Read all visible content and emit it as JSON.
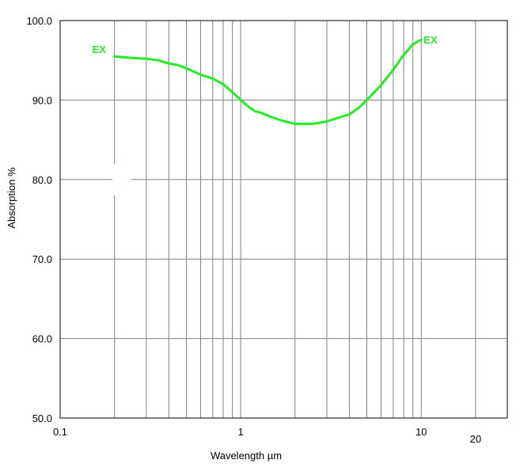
{
  "chart_data": {
    "type": "line",
    "x_scale": "log",
    "xlabel": "Wavelength  µm",
    "ylabel": "Absorption  %",
    "xlim": [
      0.1,
      30
    ],
    "ylim": [
      50,
      100
    ],
    "x_ticks": [
      {
        "value": 0.1,
        "label": "0.1"
      },
      {
        "value": 1,
        "label": "1"
      },
      {
        "value": 10,
        "label": "10"
      },
      {
        "value": 20,
        "label": "20"
      }
    ],
    "y_ticks": [
      {
        "value": 100,
        "label": "100.0"
      },
      {
        "value": 90,
        "label": "90.0"
      },
      {
        "value": 80,
        "label": "80.0"
      },
      {
        "value": 70,
        "label": "70.0"
      },
      {
        "value": 60,
        "label": "60.0"
      },
      {
        "value": 50,
        "label": "50.0"
      }
    ],
    "vertical_grid": [
      0.2,
      0.3,
      0.4,
      0.5,
      0.6,
      0.7,
      0.8,
      0.9,
      1,
      2,
      3,
      4,
      5,
      6,
      7,
      8,
      9,
      10,
      20
    ],
    "grid": true,
    "series": [
      {
        "color": "#22ee22",
        "start_label": "EX",
        "end_label": "EX",
        "x": [
          0.2,
          0.25,
          0.3,
          0.35,
          0.4,
          0.45,
          0.5,
          0.6,
          0.7,
          0.8,
          0.9,
          1.0,
          1.1,
          1.2,
          1.3,
          1.5,
          1.7,
          2.0,
          2.5,
          3.0,
          3.5,
          4.0,
          4.5,
          5.0,
          6.0,
          7.0,
          8.0,
          9.0,
          10.0
        ],
        "y": [
          95.5,
          95.3,
          95.2,
          95.0,
          94.6,
          94.4,
          94.0,
          93.2,
          92.7,
          92.0,
          91.0,
          90.0,
          89.2,
          88.6,
          88.4,
          87.8,
          87.4,
          87.0,
          87.0,
          87.3,
          87.8,
          88.2,
          89.0,
          90.0,
          91.9,
          93.8,
          95.7,
          97.0,
          97.6
        ]
      }
    ]
  }
}
